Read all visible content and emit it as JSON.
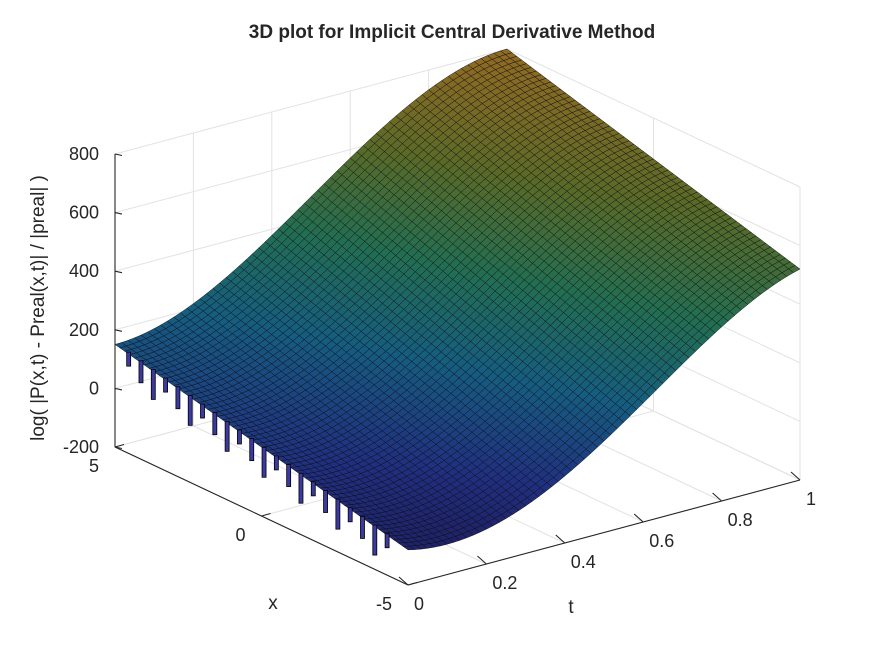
{
  "chart_data": {
    "type": "surface3d",
    "title": "3D plot for Implicit Central Derivative Method",
    "xlabel": "t",
    "ylabel": "x",
    "zlabel": "log( |P(x,t) - Preal(x,t)| / |preal| )",
    "t_ticks": [
      "0",
      "0.2",
      "0.4",
      "0.6",
      "0.8",
      "1"
    ],
    "x_ticks": [
      "5",
      "0",
      "-5"
    ],
    "z_ticks": [
      "800",
      "600",
      "400",
      "200",
      "0",
      "-200"
    ],
    "tlim": [
      0,
      1
    ],
    "xlim": [
      -5,
      5
    ],
    "zlim": [
      -200,
      800
    ],
    "grid": true,
    "colormap": "parula-dark",
    "surface_samples": {
      "t": [
        0,
        0.25,
        0.5,
        0.75,
        1
      ],
      "x_at_t0": [
        -5,
        0,
        5
      ],
      "z_t0": [
        -80,
        40,
        150
      ],
      "z_t1_x5": 800,
      "z_t1_xminus5": 520
    }
  }
}
